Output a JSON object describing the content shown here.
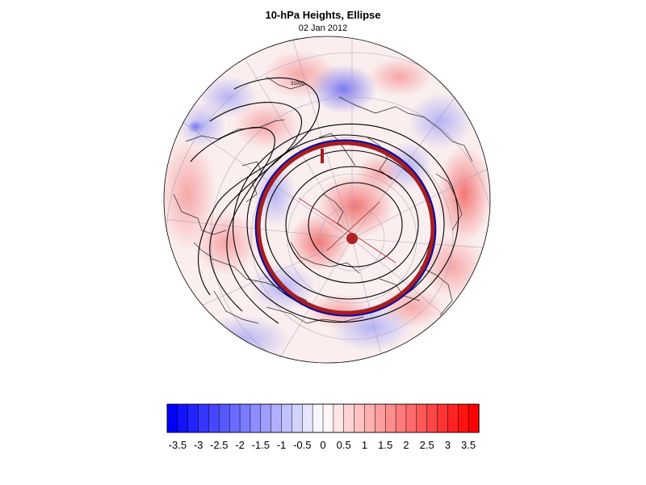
{
  "title": "10-hPa Heights, Ellipse",
  "subtitle": "02 Jan 2012",
  "colorbar": {
    "min": -3.75,
    "max": 3.75,
    "step": 0.25,
    "tick_labels": [
      "-3.5",
      "-3",
      "-2.5",
      "-2",
      "-1.5",
      "-1",
      "-0.5",
      "0",
      "0.5",
      "1",
      "1.5",
      "2",
      "2.5",
      "3",
      "3.5"
    ],
    "negative_color": "#0000ff",
    "neutral_color": "#ffffff",
    "positive_color": "#ff0000"
  },
  "map": {
    "projection": "polar stereographic (north pole)",
    "field": "10-hPa geopotential height anomaly",
    "contour_color": "#000000",
    "contour_label": "31000",
    "ellipse_colors": {
      "fitted": "#a41e22",
      "edge": "#0a0aa0"
    },
    "ellipse_center_color": "#b22222"
  }
}
